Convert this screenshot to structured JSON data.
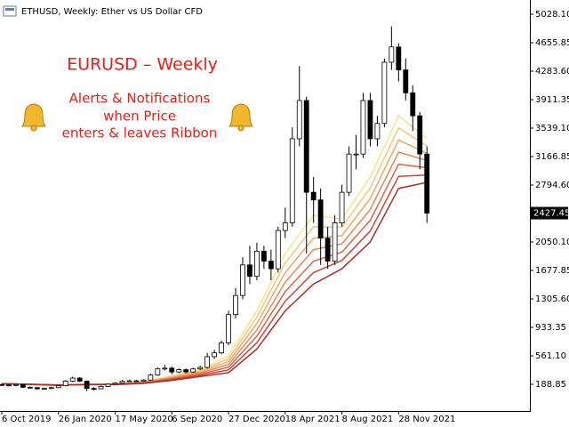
{
  "chart_data": {
    "type": "candlestick",
    "header": "ETHUSD, Weekly:  Ether vs US Dollar CFD",
    "annotation": {
      "title": "EURUSD – Weekly",
      "lines": [
        "Alerts & Notifications",
        "when Price",
        "enters & leaves Ribbon"
      ]
    },
    "categories": [
      "6 Oct 2019",
      null,
      null,
      null,
      null,
      null,
      null,
      null,
      "26 Jan 2020",
      null,
      null,
      null,
      null,
      null,
      null,
      null,
      "17 May 2020",
      null,
      null,
      null,
      null,
      null,
      null,
      null,
      "6 Sep 2020",
      null,
      null,
      null,
      null,
      null,
      null,
      null,
      "27 Dec 2020",
      null,
      null,
      null,
      null,
      null,
      null,
      null,
      "18 Apr 2021",
      null,
      null,
      null,
      null,
      null,
      null,
      null,
      "8 Aug 2021",
      null,
      null,
      null,
      null,
      null,
      null,
      null,
      "28 Nov 2021",
      null,
      null,
      null,
      null
    ],
    "open": [
      185,
      180,
      175,
      185,
      150,
      145,
      130,
      135,
      145,
      170,
      230,
      270,
      230,
      135,
      130,
      160,
      190,
      205,
      230,
      235,
      230,
      245,
      310,
      390,
      400,
      350,
      380,
      350,
      390,
      410,
      550,
      600,
      730,
      1100,
      1350,
      1750,
      1600,
      1930,
      1800,
      1700,
      2200,
      2300,
      3400,
      3900,
      2700,
      2600,
      2100,
      1800,
      2300,
      2700,
      3200,
      3200,
      3900,
      3400,
      3600,
      4400,
      4600,
      4300,
      4000,
      3700,
      3200
    ],
    "high": [
      198,
      192,
      197,
      197,
      160,
      152,
      145,
      155,
      180,
      245,
      288,
      285,
      240,
      150,
      172,
      200,
      215,
      245,
      250,
      248,
      255,
      330,
      410,
      445,
      420,
      395,
      395,
      405,
      430,
      600,
      640,
      760,
      1150,
      1450,
      1850,
      2000,
      2040,
      2000,
      1950,
      2250,
      2500,
      3550,
      4350,
      3950,
      2900,
      2750,
      2250,
      2400,
      2800,
      3300,
      3450,
      4000,
      4000,
      3700,
      4450,
      4870,
      4650,
      4450,
      4100,
      3750,
      3300
    ],
    "low": [
      170,
      165,
      168,
      140,
      135,
      120,
      122,
      128,
      138,
      162,
      218,
      220,
      100,
      110,
      125,
      152,
      182,
      198,
      222,
      220,
      222,
      238,
      300,
      370,
      320,
      335,
      330,
      340,
      375,
      395,
      520,
      580,
      700,
      1050,
      1300,
      1500,
      1550,
      1700,
      1550,
      1650,
      2100,
      2250,
      3300,
      1900,
      2300,
      1750,
      1700,
      1750,
      2250,
      2650,
      3000,
      3150,
      3300,
      3300,
      3550,
      4300,
      4150,
      3900,
      3500,
      3000,
      2300
    ],
    "close": [
      180,
      175,
      185,
      150,
      145,
      130,
      135,
      145,
      170,
      230,
      270,
      230,
      135,
      130,
      160,
      190,
      205,
      230,
      235,
      230,
      245,
      310,
      390,
      400,
      350,
      380,
      350,
      390,
      410,
      550,
      600,
      730,
      1100,
      1350,
      1750,
      1600,
      1930,
      1800,
      1700,
      2200,
      2300,
      3400,
      3900,
      2700,
      2600,
      2100,
      1800,
      2300,
      2700,
      3200,
      3200,
      3900,
      3400,
      3600,
      4400,
      4600,
      4300,
      4000,
      3700,
      3200,
      2427.45
    ],
    "ribbon": {
      "x": [
        0,
        4,
        8,
        12,
        16,
        20,
        24,
        28,
        32,
        36,
        40,
        44,
        48,
        52,
        56,
        60
      ],
      "series": [
        {
          "color": "#f7e48c",
          "values": [
            200,
            185,
            170,
            190,
            195,
            225,
            300,
            380,
            560,
            1150,
            1900,
            2400,
            2350,
            2900,
            3700,
            3400
          ]
        },
        {
          "color": "#f5c77a",
          "values": [
            199,
            186,
            172,
            189,
            193,
            221,
            290,
            365,
            523,
            1067,
            1775,
            2250,
            2242,
            2758,
            3542,
            3305
          ]
        },
        {
          "color": "#f0a86a",
          "values": [
            198,
            187,
            173,
            188,
            192,
            217,
            280,
            350,
            487,
            983,
            1650,
            2100,
            2133,
            2617,
            3383,
            3210
          ]
        },
        {
          "color": "#e8875a",
          "values": [
            198,
            188,
            175,
            188,
            190,
            213,
            270,
            335,
            450,
            900,
            1525,
            1950,
            2025,
            2475,
            3225,
            3115
          ]
        },
        {
          "color": "#d9664a",
          "values": [
            197,
            188,
            177,
            187,
            188,
            208,
            260,
            320,
            413,
            817,
            1400,
            1800,
            1917,
            2333,
            3067,
            3020
          ]
        },
        {
          "color": "#c8483a",
          "values": [
            196,
            189,
            178,
            186,
            187,
            204,
            250,
            305,
            377,
            733,
            1275,
            1650,
            1808,
            2192,
            2908,
            2925
          ]
        },
        {
          "color": "#a8302a",
          "values": [
            195,
            190,
            180,
            185,
            185,
            200,
            240,
            290,
            340,
            650,
            1150,
            1500,
            1700,
            2050,
            2750,
            2830
          ]
        }
      ]
    },
    "ylim": [
      -160.1,
      5214.2
    ],
    "yticks": [
      {
        "value": 188.85,
        "label": "188.85"
      },
      {
        "value": 561.1,
        "label": "561.10"
      },
      {
        "value": 933.35,
        "label": "933.35"
      },
      {
        "value": 1305.6,
        "label": "1305.60"
      },
      {
        "value": 1677.85,
        "label": "1677.85"
      },
      {
        "value": 2050.1,
        "label": "2050.10"
      },
      {
        "value": 2794.6,
        "label": "2794.60"
      },
      {
        "value": 3166.85,
        "label": "3166.85"
      },
      {
        "value": 3539.1,
        "label": "3539.10"
      },
      {
        "value": 3911.35,
        "label": "3911.35"
      },
      {
        "value": 4283.6,
        "label": "4283.60"
      },
      {
        "value": 4655.85,
        "label": "4655.85"
      },
      {
        "value": 5028.1,
        "label": "5028.10"
      }
    ],
    "up_color": "#ffffff",
    "down_color": "#000000"
  }
}
